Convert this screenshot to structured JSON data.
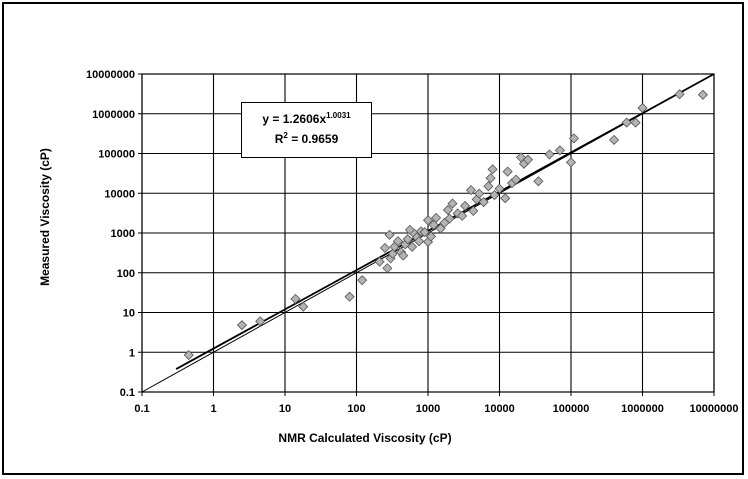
{
  "chart_data": {
    "type": "scatter",
    "title": "",
    "xlabel": "NMR Calculated Viscosity (cP)",
    "ylabel": "Measured Viscosity (cP)",
    "xscale": "log",
    "yscale": "log",
    "xlim": [
      0.1,
      10000000
    ],
    "ylim": [
      0.1,
      10000000
    ],
    "x_ticks": [
      "0.1",
      "1",
      "10",
      "100",
      "1000",
      "10000",
      "100000",
      "1000000",
      "10000000"
    ],
    "y_ticks": [
      "0.1",
      "1",
      "10",
      "100",
      "1000",
      "10000",
      "100000",
      "1000000",
      "10000000"
    ],
    "grid": true,
    "marker": "diamond",
    "marker_color": "#b3b3b3",
    "trendline": {
      "equation_prefix": "y = 1.2606x",
      "exponent": "1.0031",
      "r2_prefix": "R",
      "r2_power": "2",
      "r2_value": " = 0.9659",
      "coefficient": 1.2606,
      "power": 1.0031
    },
    "reference_line": "y = x",
    "series": [
      {
        "points": [
          [
            0.45,
            0.85
          ],
          [
            2.5,
            4.8
          ],
          [
            4.5,
            6.0
          ],
          [
            14,
            22
          ],
          [
            18,
            14
          ],
          [
            80,
            25
          ],
          [
            120,
            65
          ],
          [
            210,
            190
          ],
          [
            250,
            420
          ],
          [
            270,
            130
          ],
          [
            290,
            900
          ],
          [
            300,
            230
          ],
          [
            320,
            300
          ],
          [
            340,
            450
          ],
          [
            380,
            620
          ],
          [
            420,
            330
          ],
          [
            450,
            270
          ],
          [
            480,
            520
          ],
          [
            520,
            700
          ],
          [
            560,
            1200
          ],
          [
            600,
            450
          ],
          [
            650,
            950
          ],
          [
            700,
            780
          ],
          [
            750,
            620
          ],
          [
            800,
            1100
          ],
          [
            900,
            1050
          ],
          [
            1000,
            600
          ],
          [
            1000,
            2100
          ],
          [
            1100,
            820
          ],
          [
            1200,
            1600
          ],
          [
            1300,
            2400
          ],
          [
            1500,
            1300
          ],
          [
            1700,
            1800
          ],
          [
            1900,
            3800
          ],
          [
            2000,
            2300
          ],
          [
            2200,
            5500
          ],
          [
            2600,
            3100
          ],
          [
            3000,
            2700
          ],
          [
            3300,
            4800
          ],
          [
            4000,
            12000
          ],
          [
            4300,
            3600
          ],
          [
            4800,
            7000
          ],
          [
            5200,
            9800
          ],
          [
            6000,
            6000
          ],
          [
            7000,
            15000
          ],
          [
            7500,
            24000
          ],
          [
            8000,
            40000
          ],
          [
            8500,
            9000
          ],
          [
            10000,
            13000
          ],
          [
            12000,
            7500
          ],
          [
            13000,
            35000
          ],
          [
            15000,
            18000
          ],
          [
            17000,
            22000
          ],
          [
            20000,
            80000
          ],
          [
            22000,
            55000
          ],
          [
            25000,
            70000
          ],
          [
            35000,
            20000
          ],
          [
            50000,
            95000
          ],
          [
            70000,
            120000
          ],
          [
            100000,
            60000
          ],
          [
            110000,
            240000
          ],
          [
            400000,
            220000
          ],
          [
            600000,
            600000
          ],
          [
            800000,
            600000
          ],
          [
            1000000,
            1400000
          ],
          [
            3300000,
            3100000
          ],
          [
            7000000,
            3000000
          ]
        ]
      }
    ]
  }
}
